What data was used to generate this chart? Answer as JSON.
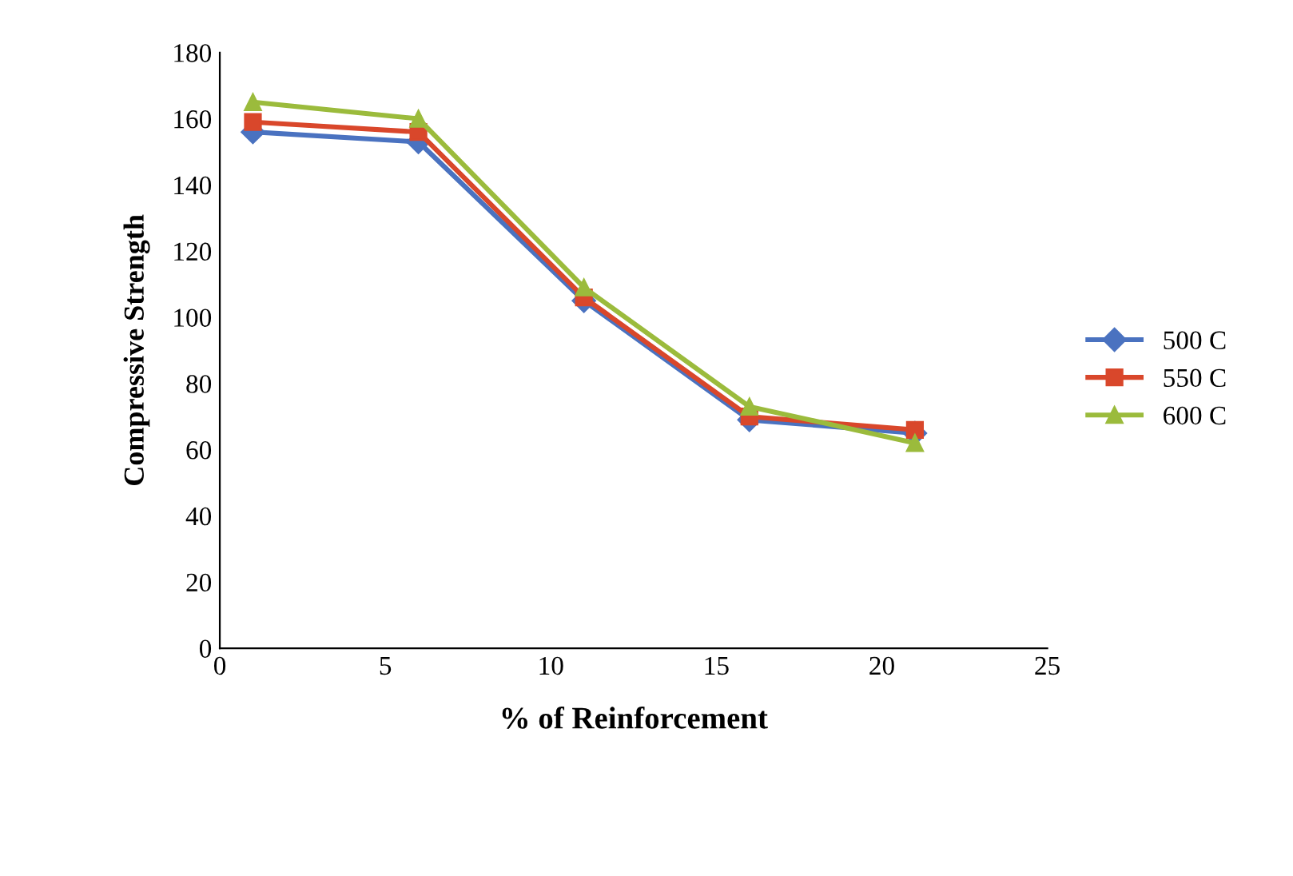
{
  "chart_data": {
    "type": "line",
    "xlabel": "% of Reinforcement",
    "ylabel": "Compressive Strength",
    "x": [
      1,
      6,
      11,
      16,
      21
    ],
    "series": [
      {
        "name": "500 C",
        "color": "#4a72c0",
        "marker": "diamond",
        "values": [
          156,
          153,
          105,
          69,
          65
        ]
      },
      {
        "name": "550 C",
        "color": "#d9472b",
        "marker": "square",
        "values": [
          159,
          156,
          106,
          70,
          66
        ]
      },
      {
        "name": "600 C",
        "color": "#9bbb3c",
        "marker": "triangle",
        "values": [
          165,
          160,
          109,
          73,
          62
        ]
      }
    ],
    "xlim": [
      0,
      25
    ],
    "xticks": [
      0,
      5,
      10,
      15,
      20,
      25
    ],
    "ylim": [
      0,
      180
    ],
    "yticks": [
      0,
      20,
      40,
      60,
      80,
      100,
      120,
      140,
      160,
      180
    ],
    "grid": false,
    "legend": "right",
    "line_style": "solid"
  }
}
